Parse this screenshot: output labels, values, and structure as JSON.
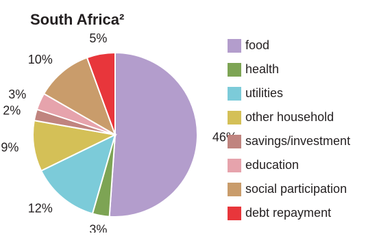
{
  "chart_data": {
    "type": "pie",
    "title": "South Africa²",
    "categories": [
      "food",
      "health",
      "utilities",
      "other household",
      "savings/investment",
      "education",
      "social participation",
      "debt repayment"
    ],
    "values": [
      46,
      3,
      12,
      9,
      2,
      3,
      10,
      5
    ],
    "value_labels": [
      "46%",
      "3%",
      "12%",
      "9%",
      "2%",
      "3%",
      "10%",
      "5%"
    ],
    "colors": [
      "#b39dcc",
      "#7da454",
      "#7ccbd9",
      "#d4c057",
      "#c0847f",
      "#e6a3ac",
      "#c99c6b",
      "#e8363b"
    ]
  }
}
